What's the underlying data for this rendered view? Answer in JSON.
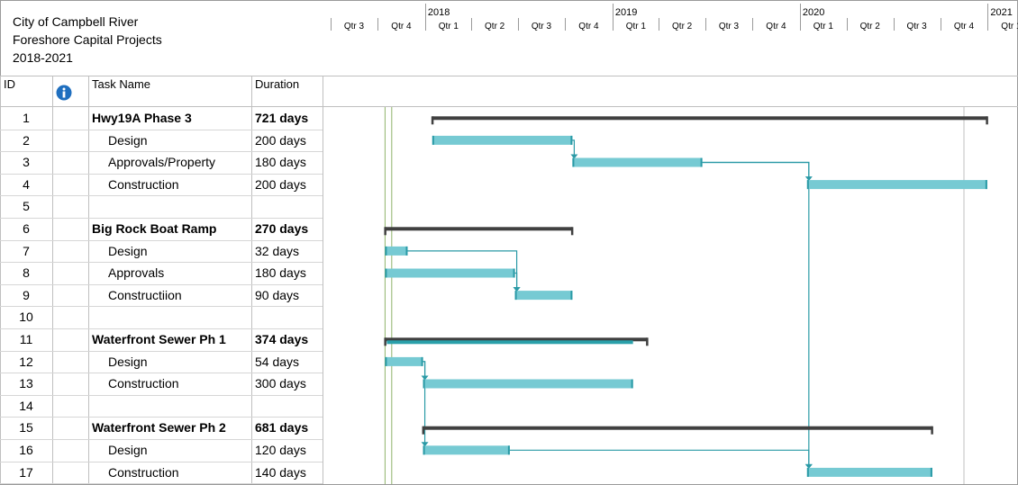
{
  "header": {
    "line1": "City of Campbell River",
    "line2": "Foreshore Capital Projects",
    "line3": "2018-2021"
  },
  "columns": {
    "id": "ID",
    "info_icon": "info-icon",
    "task_name": "Task Name",
    "duration": "Duration"
  },
  "timescale": {
    "years": [
      {
        "label": "2018",
        "date": "2018-01-01"
      },
      {
        "label": "2019",
        "date": "2019-01-01"
      },
      {
        "label": "2020",
        "date": "2020-01-01"
      },
      {
        "label": "2021",
        "date": "2021-01-01"
      }
    ],
    "quarters": [
      {
        "label": "Qtr 3",
        "date": "2017-07-01"
      },
      {
        "label": "Qtr 4",
        "date": "2017-10-01"
      },
      {
        "label": "Qtr 1",
        "date": "2018-01-01"
      },
      {
        "label": "Qtr 2",
        "date": "2018-04-01"
      },
      {
        "label": "Qtr 3",
        "date": "2018-07-01"
      },
      {
        "label": "Qtr 4",
        "date": "2018-10-01"
      },
      {
        "label": "Qtr 1",
        "date": "2019-01-01"
      },
      {
        "label": "Qtr 2",
        "date": "2019-04-01"
      },
      {
        "label": "Qtr 3",
        "date": "2019-07-01"
      },
      {
        "label": "Qtr 4",
        "date": "2019-10-01"
      },
      {
        "label": "Qtr 1",
        "date": "2020-01-01"
      },
      {
        "label": "Qtr 2",
        "date": "2020-04-01"
      },
      {
        "label": "Qtr 3",
        "date": "2020-07-01"
      },
      {
        "label": "Qtr 4",
        "date": "2020-10-01"
      },
      {
        "label": "Qtr 1",
        "date": "2021-01-01"
      }
    ]
  },
  "colors": {
    "task_bar": "#76cad3",
    "task_bar_edge": "#2a9aa6",
    "summary_bar": "#404040",
    "summary_progress": "#2aa0aa",
    "link": "#2a9aa6",
    "status_line": "#8fb36b"
  },
  "tasks": [
    {
      "id": "1",
      "name": "Hwy19A Phase 3",
      "duration": "721 days",
      "summary": true,
      "start": "2018-01-15",
      "end": "2020-12-31"
    },
    {
      "id": "2",
      "name": "Design",
      "duration": "200 days",
      "summary": false,
      "start": "2018-01-15",
      "end": "2018-10-15"
    },
    {
      "id": "3",
      "name": "Approvals/Property",
      "duration": "180 days",
      "summary": false,
      "start": "2018-10-15",
      "end": "2019-06-25"
    },
    {
      "id": "4",
      "name": "Construction",
      "duration": "200 days",
      "summary": false,
      "start": "2020-01-15",
      "end": "2020-12-31"
    },
    {
      "id": "5",
      "name": "",
      "duration": ""
    },
    {
      "id": "6",
      "name": "Big Rock Boat  Ramp",
      "duration": "270 days",
      "summary": true,
      "start": "2017-10-15",
      "end": "2018-10-15"
    },
    {
      "id": "7",
      "name": "Design",
      "duration": "32 days",
      "summary": false,
      "start": "2017-10-15",
      "end": "2017-11-28"
    },
    {
      "id": "8",
      "name": "Approvals",
      "duration": "180 days",
      "summary": false,
      "start": "2017-10-15",
      "end": "2018-06-25"
    },
    {
      "id": "9",
      "name": "Constructiion",
      "duration": "90 days",
      "summary": false,
      "start": "2018-06-25",
      "end": "2018-10-15"
    },
    {
      "id": "10",
      "name": "",
      "duration": ""
    },
    {
      "id": "11",
      "name": "Waterfront Sewer Ph 1",
      "duration": "374 days",
      "summary": true,
      "start": "2017-10-15",
      "end": "2019-03-10",
      "progress_end": "2019-02-10"
    },
    {
      "id": "12",
      "name": "Design",
      "duration": "54 days",
      "summary": false,
      "start": "2017-10-15",
      "end": "2017-12-28"
    },
    {
      "id": "13",
      "name": "Construction",
      "duration": "300 days",
      "summary": false,
      "start": "2017-12-28",
      "end": "2019-02-10"
    },
    {
      "id": "14",
      "name": "",
      "duration": ""
    },
    {
      "id": "15",
      "name": "Waterfront Sewer Ph 2",
      "duration": "681 days",
      "summary": true,
      "start": "2017-12-28",
      "end": "2020-09-15"
    },
    {
      "id": "16",
      "name": "Design",
      "duration": "120 days",
      "summary": false,
      "start": "2017-12-28",
      "end": "2018-06-15"
    },
    {
      "id": "17",
      "name": "Construction",
      "duration": "140 days",
      "summary": false,
      "start": "2020-01-15",
      "end": "2020-09-15"
    }
  ],
  "links": [
    {
      "from": "2",
      "to": "3"
    },
    {
      "from": "3",
      "to": "4"
    },
    {
      "from": "7",
      "to": "9"
    },
    {
      "from": "8",
      "to": "9"
    },
    {
      "from": "12",
      "to": "13"
    },
    {
      "from": "12",
      "to": "16"
    },
    {
      "from": "16",
      "to": "17"
    },
    {
      "from": "3",
      "to": "17"
    }
  ],
  "status_dates": [
    "2017-10-15",
    "2017-10-28"
  ]
}
